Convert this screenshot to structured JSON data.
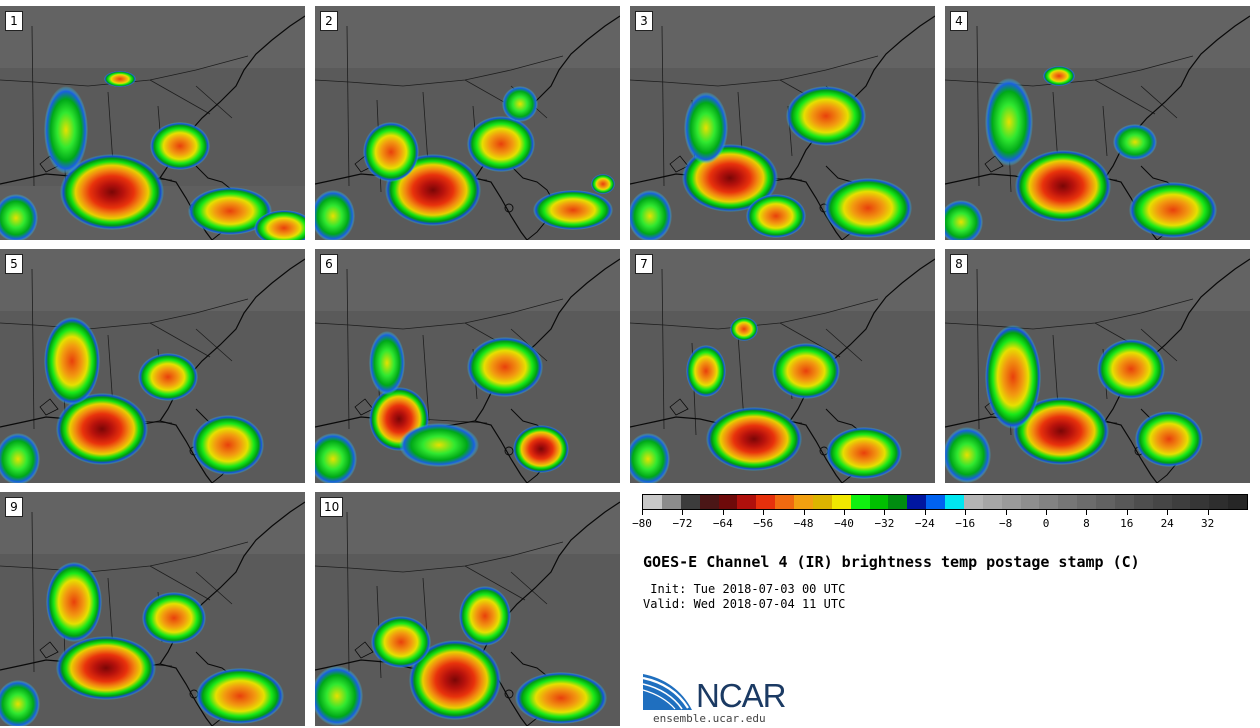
{
  "panels": [
    {
      "number": "1"
    },
    {
      "number": "2"
    },
    {
      "number": "3"
    },
    {
      "number": "4"
    },
    {
      "number": "5"
    },
    {
      "number": "6"
    },
    {
      "number": "7"
    },
    {
      "number": "8"
    },
    {
      "number": "9"
    },
    {
      "number": "10"
    }
  ],
  "colorbar": {
    "colors": [
      "#c8c8c8",
      "#8c8c8c",
      "#3c3c3c",
      "#4a1616",
      "#6e0a0a",
      "#b0100c",
      "#e6300c",
      "#f06a10",
      "#f2a010",
      "#dcb400",
      "#f0e800",
      "#10f010",
      "#00c000",
      "#008c10",
      "#0016a0",
      "#0062f0",
      "#00e6f0",
      "#b4b4b4",
      "#a6a6a6",
      "#9a9a9a",
      "#8e8e8e",
      "#828282",
      "#767676",
      "#6c6c6c",
      "#626262",
      "#585858",
      "#4e4e4e",
      "#464646",
      "#3e3e3e",
      "#363636",
      "#2e2e2e",
      "#262626"
    ],
    "min": -80,
    "max": 40,
    "ticks": [
      "-80",
      "-72",
      "-64",
      "-56",
      "-48",
      "-40",
      "-32",
      "-24",
      "-16",
      "-8",
      "0",
      "8",
      "16",
      "24",
      "32"
    ]
  },
  "title": "GOES-E Channel 4 (IR) brightness temp postage stamp (C)",
  "init": " Init: Tue 2018-07-03 00 UTC",
  "valid": "Valid: Wed 2018-07-04 11 UTC",
  "logo": {
    "name": "NCAR",
    "url_text": "ensemble.ucar.edu"
  }
}
